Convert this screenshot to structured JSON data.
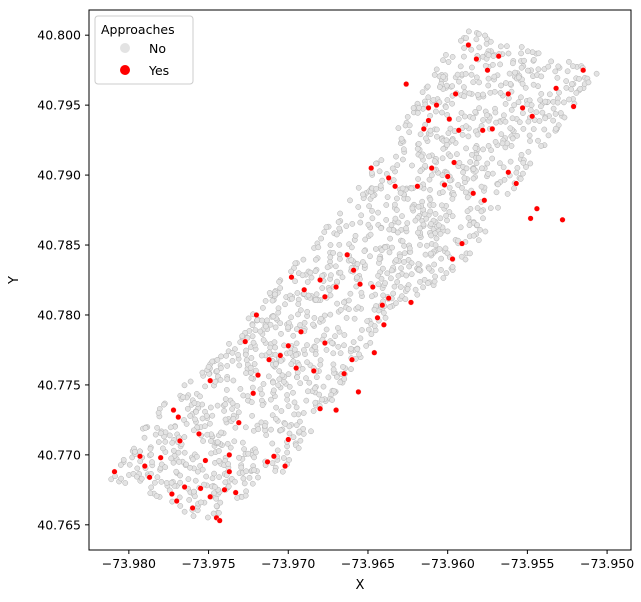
{
  "chart_data": {
    "type": "scatter",
    "title": "",
    "xlabel": "X",
    "ylabel": "Y",
    "xlim": [
      -73.9825,
      -73.9485
    ],
    "ylim": [
      40.7632,
      40.8018
    ],
    "xticks": [
      -73.98,
      -73.975,
      -73.97,
      -73.965,
      -73.96,
      -73.955,
      -73.95
    ],
    "xtick_labels": [
      "−73.980",
      "−73.975",
      "−73.970",
      "−73.965",
      "−73.960",
      "−73.955",
      "−73.950"
    ],
    "yticks": [
      40.765,
      40.77,
      40.775,
      40.78,
      40.785,
      40.79,
      40.795,
      40.8
    ],
    "ytick_labels": [
      "40.765",
      "40.770",
      "40.775",
      "40.780",
      "40.785",
      "40.790",
      "40.795",
      "40.800"
    ],
    "grid": false,
    "legend": {
      "title": "Approaches",
      "placement": "top-left",
      "entries": [
        {
          "label": "No",
          "color": "#e3e3e3"
        },
        {
          "label": "Yes",
          "color": "#ff0000"
        }
      ]
    },
    "series": [
      {
        "name": "No",
        "color": "#e3e3e3",
        "edge_color": "#b0b0b0",
        "approx_point_count": 1500,
        "region_outline_xy": [
          [
            -73.9812,
            40.7682
          ],
          [
            -73.9752,
            40.7652
          ],
          [
            -73.9702,
            40.7689
          ],
          [
            -73.9632,
            40.7808
          ],
          [
            -73.9612,
            40.7818
          ],
          [
            -73.9589,
            40.7837
          ],
          [
            -73.9566,
            40.7878
          ],
          [
            -73.9504,
            40.7975
          ],
          [
            -73.959,
            40.8005
          ],
          [
            -73.9655,
            40.7893
          ],
          [
            -73.9672,
            40.7868
          ],
          [
            -73.9718,
            40.781
          ],
          [
            -73.974,
            40.7775
          ],
          [
            -73.979,
            40.7725
          ],
          [
            -73.9812,
            40.7682
          ]
        ]
      },
      {
        "name": "Yes",
        "color": "#ff0000",
        "points": [
          [
            -73.9809,
            40.7688
          ],
          [
            -73.9793,
            40.7699
          ],
          [
            -73.979,
            40.7692
          ],
          [
            -73.9787,
            40.7684
          ],
          [
            -73.978,
            40.7698
          ],
          [
            -73.9773,
            40.7672
          ],
          [
            -73.977,
            40.7667
          ],
          [
            -73.9765,
            40.7677
          ],
          [
            -73.976,
            40.7662
          ],
          [
            -73.9755,
            40.7676
          ],
          [
            -73.9752,
            40.7696
          ],
          [
            -73.9749,
            40.767
          ],
          [
            -73.9745,
            40.7655
          ],
          [
            -73.9743,
            40.7653
          ],
          [
            -73.974,
            40.7675
          ],
          [
            -73.9737,
            40.7688
          ],
          [
            -73.9733,
            40.7673
          ],
          [
            -73.9768,
            40.771
          ],
          [
            -73.9772,
            40.7732
          ],
          [
            -73.9769,
            40.7727
          ],
          [
            -73.9756,
            40.7715
          ],
          [
            -73.9749,
            40.7753
          ],
          [
            -73.9737,
            40.77
          ],
          [
            -73.9731,
            40.7723
          ],
          [
            -73.9727,
            40.7781
          ],
          [
            -73.9722,
            40.7744
          ],
          [
            -73.9719,
            40.7757
          ],
          [
            -73.9713,
            40.7695
          ],
          [
            -73.9712,
            40.7768
          ],
          [
            -73.9709,
            40.7699
          ],
          [
            -73.9702,
            40.7692
          ],
          [
            -73.97,
            40.7711
          ],
          [
            -73.972,
            40.78
          ],
          [
            -73.9705,
            40.7771
          ],
          [
            -73.97,
            40.7778
          ],
          [
            -73.9695,
            40.7762
          ],
          [
            -73.9692,
            40.7788
          ],
          [
            -73.9684,
            40.776
          ],
          [
            -73.968,
            40.7733
          ],
          [
            -73.9677,
            40.7813
          ],
          [
            -73.967,
            40.7732
          ],
          [
            -73.9665,
            40.7758
          ],
          [
            -73.966,
            40.7768
          ],
          [
            -73.9656,
            40.7745
          ],
          [
            -73.9646,
            40.7773
          ],
          [
            -73.964,
            40.7793
          ],
          [
            -73.9637,
            40.7812
          ],
          [
            -73.9623,
            40.7809
          ],
          [
            -73.9698,
            40.7827
          ],
          [
            -73.969,
            40.7818
          ],
          [
            -73.968,
            40.7825
          ],
          [
            -73.967,
            40.782
          ],
          [
            -73.9663,
            40.7843
          ],
          [
            -73.9659,
            40.7832
          ],
          [
            -73.9655,
            40.7822
          ],
          [
            -73.9647,
            40.782
          ],
          [
            -73.9644,
            40.7798
          ],
          [
            -73.9677,
            40.778
          ],
          [
            -73.9641,
            40.7807
          ],
          [
            -73.9597,
            40.784
          ],
          [
            -73.9591,
            40.7851
          ],
          [
            -73.9648,
            40.7905
          ],
          [
            -73.9637,
            40.7898
          ],
          [
            -73.9633,
            40.7892
          ],
          [
            -73.9619,
            40.7892
          ],
          [
            -73.961,
            40.7905
          ],
          [
            -73.96,
            40.7899
          ],
          [
            -73.9584,
            40.7887
          ],
          [
            -73.9562,
            40.7902
          ],
          [
            -73.9557,
            40.7894
          ],
          [
            -73.9544,
            40.7876
          ],
          [
            -73.9548,
            40.7869
          ],
          [
            -73.9577,
            40.7882
          ],
          [
            -73.9528,
            40.7868
          ],
          [
            -73.9612,
            40.7939
          ],
          [
            -73.9607,
            40.795
          ],
          [
            -73.9599,
            40.794
          ],
          [
            -73.9593,
            40.7932
          ],
          [
            -73.9578,
            40.7932
          ],
          [
            -73.9572,
            40.7933
          ],
          [
            -73.9562,
            40.7958
          ],
          [
            -73.9553,
            40.7948
          ],
          [
            -73.9547,
            40.7942
          ],
          [
            -73.9532,
            40.7962
          ],
          [
            -73.9521,
            40.7949
          ],
          [
            -73.9515,
            40.7975
          ],
          [
            -73.9582,
            40.7983
          ],
          [
            -73.9575,
            40.7975
          ],
          [
            -73.9568,
            40.7985
          ],
          [
            -73.9587,
            40.7993
          ],
          [
            -73.9595,
            40.7958
          ],
          [
            -73.9626,
            40.7965
          ],
          [
            -73.9612,
            40.7948
          ],
          [
            -73.9602,
            40.7893
          ],
          [
            -73.9596,
            40.7909
          ],
          [
            -73.9615,
            40.7933
          ]
        ]
      }
    ]
  }
}
